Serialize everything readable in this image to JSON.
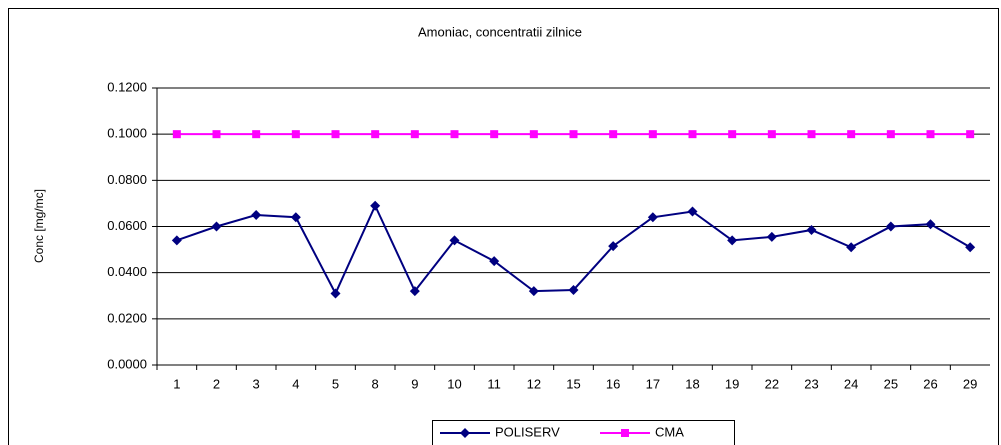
{
  "chart_data": {
    "type": "line",
    "title": "Amoniac, concentratii zilnice",
    "y_label": "Conc [mg/mc]",
    "categories": [
      "1",
      "2",
      "3",
      "4",
      "5",
      "8",
      "9",
      "10",
      "11",
      "12",
      "15",
      "16",
      "17",
      "18",
      "19",
      "22",
      "23",
      "24",
      "25",
      "26",
      "29"
    ],
    "series": [
      {
        "name": "POLISERV",
        "color": "#000080",
        "marker": "diamond",
        "values": [
          0.054,
          0.06,
          0.065,
          0.064,
          0.031,
          0.069,
          0.032,
          0.054,
          0.045,
          0.032,
          0.0325,
          0.0515,
          0.064,
          0.0665,
          0.054,
          0.0555,
          0.0585,
          0.051,
          0.06,
          0.061,
          0.051
        ]
      },
      {
        "name": "CMA",
        "color": "#ff00ff",
        "marker": "square",
        "values": [
          0.1,
          0.1,
          0.1,
          0.1,
          0.1,
          0.1,
          0.1,
          0.1,
          0.1,
          0.1,
          0.1,
          0.1,
          0.1,
          0.1,
          0.1,
          0.1,
          0.1,
          0.1,
          0.1,
          0.1,
          0.1
        ]
      }
    ],
    "ylim": [
      0,
      0.12
    ],
    "yticks": [
      {
        "value": 0,
        "label": "0.0000"
      },
      {
        "value": 0.02,
        "label": "0.0200"
      },
      {
        "value": 0.04,
        "label": "0.0400"
      },
      {
        "value": 0.06,
        "label": "0.0600"
      },
      {
        "value": 0.08,
        "label": "0.0800"
      },
      {
        "value": 0.1,
        "label": "0.1000"
      },
      {
        "value": 0.12,
        "label": "0.1200"
      }
    ],
    "grid": true,
    "legend": "bottom"
  }
}
